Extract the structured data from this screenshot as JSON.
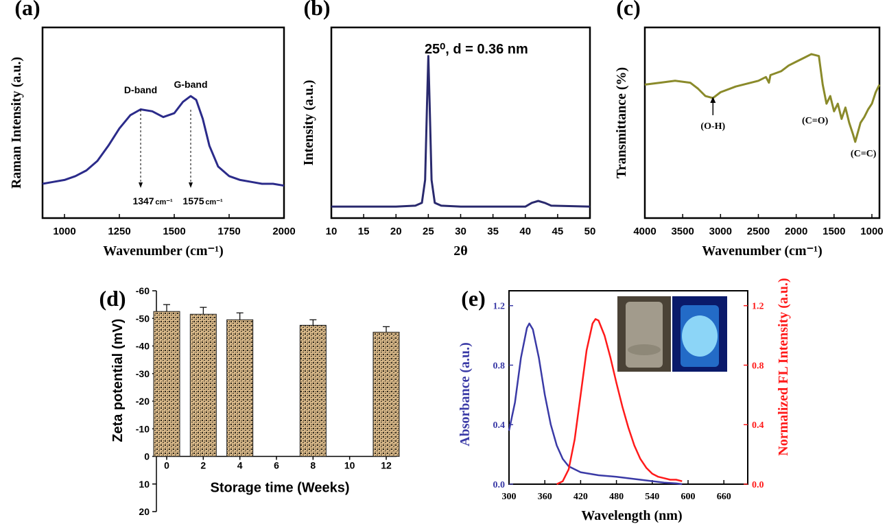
{
  "chart_data": [
    {
      "panel": "(a)",
      "type": "line",
      "xlabel": "Wavenumber (cm⁻¹)",
      "ylabel": "Raman Intensity (a.u.)",
      "xlim": [
        900,
        2000
      ],
      "xticks": [
        1000,
        1250,
        1500,
        1750,
        2000
      ],
      "y_ticks_shown": false,
      "series": [
        {
          "color": "#2b2b8a",
          "points": [
            [
              900,
              0.18
            ],
            [
              950,
              0.19
            ],
            [
              1000,
              0.2
            ],
            [
              1050,
              0.22
            ],
            [
              1100,
              0.25
            ],
            [
              1150,
              0.3
            ],
            [
              1200,
              0.38
            ],
            [
              1250,
              0.47
            ],
            [
              1300,
              0.54
            ],
            [
              1347,
              0.57
            ],
            [
              1400,
              0.56
            ],
            [
              1450,
              0.53
            ],
            [
              1500,
              0.55
            ],
            [
              1540,
              0.61
            ],
            [
              1575,
              0.64
            ],
            [
              1600,
              0.62
            ],
            [
              1630,
              0.52
            ],
            [
              1660,
              0.38
            ],
            [
              1700,
              0.27
            ],
            [
              1750,
              0.22
            ],
            [
              1800,
              0.2
            ],
            [
              1850,
              0.19
            ],
            [
              1900,
              0.18
            ],
            [
              1950,
              0.18
            ],
            [
              2000,
              0.17
            ]
          ]
        }
      ],
      "annotations": [
        {
          "text": "D-band",
          "x": 1347,
          "y": 0.57
        },
        {
          "text": "G-band",
          "x": 1575,
          "y": 0.64
        },
        {
          "text": "1347",
          "unit": "cm⁻¹",
          "x": 1347
        },
        {
          "text": "1575 ",
          "unit": "cm⁻¹",
          "x": 1575
        }
      ]
    },
    {
      "panel": "(b)",
      "type": "line",
      "xlabel": "2θ",
      "ylabel": "Intensity (a.u.)",
      "xlim": [
        10,
        50
      ],
      "xticks": [
        10,
        15,
        20,
        25,
        30,
        35,
        40,
        45,
        50
      ],
      "y_ticks_shown": false,
      "series": [
        {
          "color": "#2a2a6e",
          "points": [
            [
              10,
              0.06
            ],
            [
              20,
              0.06
            ],
            [
              23,
              0.065
            ],
            [
              24,
              0.08
            ],
            [
              24.5,
              0.2
            ],
            [
              24.8,
              0.6
            ],
            [
              25,
              0.85
            ],
            [
              25.2,
              0.6
            ],
            [
              25.5,
              0.2
            ],
            [
              26,
              0.08
            ],
            [
              27,
              0.065
            ],
            [
              30,
              0.06
            ],
            [
              40,
              0.06
            ],
            [
              41,
              0.08
            ],
            [
              42,
              0.09
            ],
            [
              43,
              0.08
            ],
            [
              44,
              0.065
            ],
            [
              50,
              0.06
            ]
          ]
        }
      ],
      "annotations": [
        {
          "text": "25⁰, d = 0.36 nm",
          "x": 25,
          "y": 0.85
        }
      ]
    },
    {
      "panel": "(c)",
      "type": "line",
      "xlabel": "Wavenumber (cm⁻¹)",
      "ylabel": "Transmittance (%)",
      "xlim": [
        4000,
        900
      ],
      "xticks": [
        4000,
        3500,
        3000,
        2500,
        2000,
        1500,
        1000
      ],
      "y_ticks_shown": false,
      "series": [
        {
          "color": "#8a8a2a",
          "points": [
            [
              4000,
              0.7
            ],
            [
              3800,
              0.71
            ],
            [
              3600,
              0.72
            ],
            [
              3400,
              0.71
            ],
            [
              3300,
              0.68
            ],
            [
              3200,
              0.64
            ],
            [
              3100,
              0.63
            ],
            [
              3000,
              0.66
            ],
            [
              2800,
              0.69
            ],
            [
              2500,
              0.72
            ],
            [
              2400,
              0.74
            ],
            [
              2360,
              0.71
            ],
            [
              2340,
              0.75
            ],
            [
              2200,
              0.77
            ],
            [
              2100,
              0.8
            ],
            [
              2000,
              0.82
            ],
            [
              1900,
              0.84
            ],
            [
              1800,
              0.86
            ],
            [
              1700,
              0.85
            ],
            [
              1650,
              0.7
            ],
            [
              1600,
              0.6
            ],
            [
              1550,
              0.64
            ],
            [
              1500,
              0.56
            ],
            [
              1450,
              0.6
            ],
            [
              1400,
              0.52
            ],
            [
              1350,
              0.58
            ],
            [
              1300,
              0.5
            ],
            [
              1250,
              0.44
            ],
            [
              1220,
              0.4
            ],
            [
              1150,
              0.5
            ],
            [
              1100,
              0.53
            ],
            [
              1050,
              0.57
            ],
            [
              1000,
              0.6
            ],
            [
              950,
              0.66
            ],
            [
              900,
              0.7
            ]
          ]
        }
      ],
      "annotations": [
        {
          "text": "(O-H)",
          "x": 3100
        },
        {
          "text": "(C=O)",
          "x": 1660
        },
        {
          "text": "(C=C)",
          "x": 1220
        }
      ]
    },
    {
      "panel": "(d)",
      "type": "bar",
      "xlabel": "Storage time (Weeks)",
      "ylabel": "Zeta potential (mV)",
      "categories": [
        "0",
        "2",
        "4",
        "6",
        "8",
        "10",
        "12"
      ],
      "ylim": [
        20,
        -60
      ],
      "yticks": [
        "-60",
        "-50",
        "-40",
        "-30",
        "-20",
        "-10",
        "0",
        "10",
        "20"
      ],
      "bars": [
        {
          "week": 0,
          "value": -52.5,
          "error": 2.5
        },
        {
          "week": 2,
          "value": -51.5,
          "error": 2.5
        },
        {
          "week": 4,
          "value": -49.5,
          "error": 2.5
        },
        {
          "week": 8,
          "value": -47.5,
          "error": 2.0
        },
        {
          "week": 12,
          "value": -45.0,
          "error": 2.0
        }
      ]
    },
    {
      "panel": "(e)",
      "type": "line",
      "xlabel": "Wavelength (nm)",
      "ylabel": "Absorbance (a.u.)",
      "ylabel_right": "Normalized FL Intensity (a.u.)",
      "xlim": [
        300,
        700
      ],
      "ylim": [
        0.0,
        1.3
      ],
      "xticks": [
        "300",
        "360",
        "420",
        "480",
        "540",
        "600",
        "660"
      ],
      "yticks": [
        "0.0",
        "0.4",
        "0.8",
        "1.2"
      ],
      "series": [
        {
          "color": "#3a3aa6",
          "axis": "left",
          "points": [
            [
              300,
              0.36
            ],
            [
              310,
              0.55
            ],
            [
              320,
              0.85
            ],
            [
              330,
              1.05
            ],
            [
              334,
              1.08
            ],
            [
              340,
              1.04
            ],
            [
              350,
              0.85
            ],
            [
              360,
              0.6
            ],
            [
              370,
              0.4
            ],
            [
              380,
              0.26
            ],
            [
              390,
              0.17
            ],
            [
              400,
              0.12
            ],
            [
              420,
              0.08
            ],
            [
              450,
              0.06
            ],
            [
              480,
              0.05
            ],
            [
              520,
              0.03
            ],
            [
              560,
              0.01
            ],
            [
              580,
              0.005
            ],
            [
              590,
              0.0
            ]
          ]
        },
        {
          "color": "#ff1a1a",
          "axis": "right",
          "points": [
            [
              380,
              0.0
            ],
            [
              390,
              0.02
            ],
            [
              400,
              0.1
            ],
            [
              410,
              0.3
            ],
            [
              420,
              0.6
            ],
            [
              430,
              0.9
            ],
            [
              440,
              1.08
            ],
            [
              445,
              1.11
            ],
            [
              450,
              1.1
            ],
            [
              460,
              1.0
            ],
            [
              470,
              0.85
            ],
            [
              480,
              0.68
            ],
            [
              490,
              0.52
            ],
            [
              500,
              0.38
            ],
            [
              510,
              0.26
            ],
            [
              520,
              0.17
            ],
            [
              530,
              0.11
            ],
            [
              540,
              0.07
            ],
            [
              550,
              0.05
            ],
            [
              560,
              0.04
            ],
            [
              570,
              0.03
            ],
            [
              580,
              0.03
            ],
            [
              590,
              0.02
            ]
          ]
        }
      ]
    }
  ]
}
